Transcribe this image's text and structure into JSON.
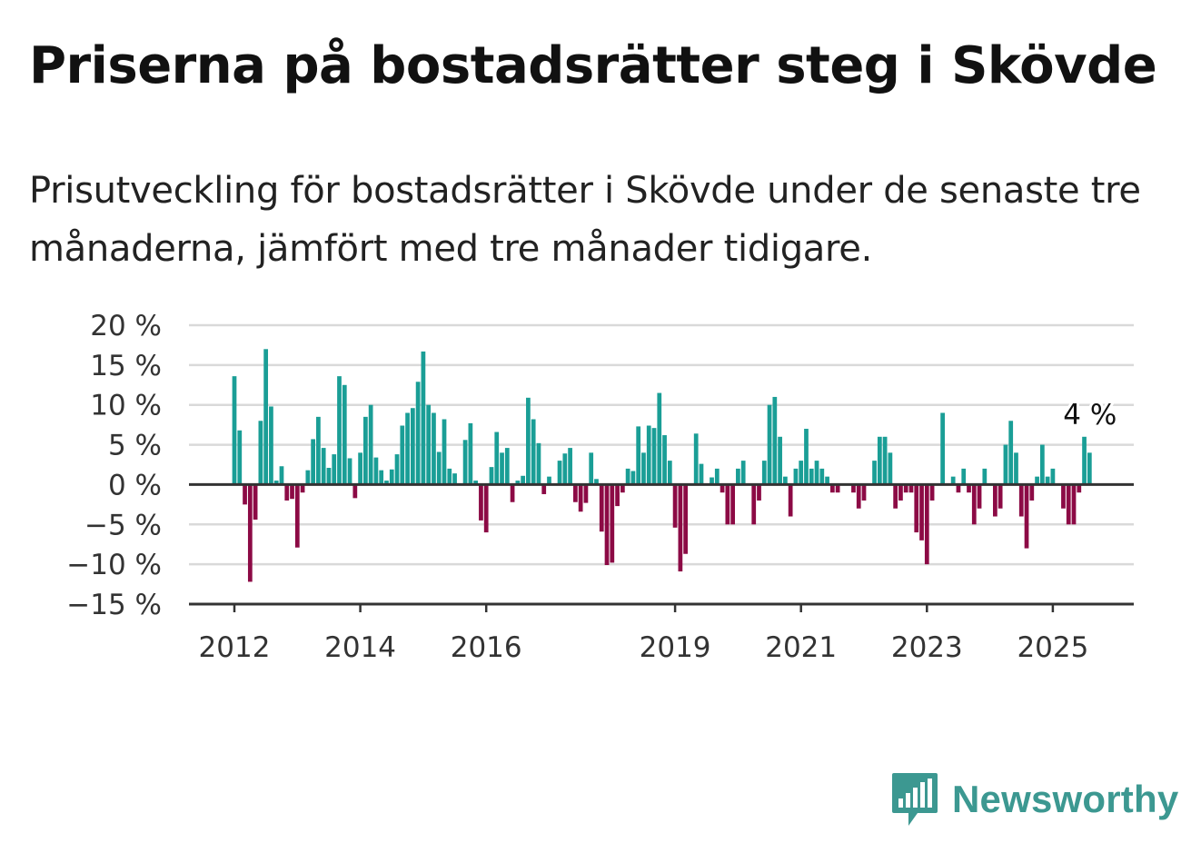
{
  "title": "Priserna på bostadsrätter steg i Skövde",
  "subtitle": "Prisutveckling för bostadsrätter i Skövde under de senaste tre månaderna, jämfört med tre månader tidigare.",
  "brand": {
    "name": "Newsworthy",
    "icon": "newsworthy-logo-icon"
  },
  "colors": {
    "positive": "#1a9e96",
    "negative": "#8c0a45",
    "grid": "#d9d9d9",
    "axis": "#333333"
  },
  "chart_data": {
    "type": "bar",
    "ylim": [
      -15,
      20
    ],
    "y_ticks": [
      20,
      15,
      10,
      5,
      0,
      -5,
      -10,
      -15
    ],
    "y_tick_labels": [
      "20 %",
      "15 %",
      "10 %",
      "5 %",
      "0 %",
      "−5 %",
      "−10 %",
      "−15 %"
    ],
    "x_ticks": [
      "2012",
      "2014",
      "2016",
      "2019",
      "2021",
      "2023",
      "2025"
    ],
    "last_value_label": "4 %",
    "x": [
      "2012-01",
      "2012-02",
      "2012-03",
      "2012-04",
      "2012-05",
      "2012-06",
      "2012-07",
      "2012-08",
      "2012-09",
      "2012-10",
      "2012-11",
      "2012-12",
      "2013-01",
      "2013-02",
      "2013-03",
      "2013-04",
      "2013-05",
      "2013-06",
      "2013-07",
      "2013-08",
      "2013-09",
      "2013-10",
      "2013-11",
      "2013-12",
      "2014-01",
      "2014-02",
      "2014-03",
      "2014-04",
      "2014-05",
      "2014-06",
      "2014-07",
      "2014-08",
      "2014-09",
      "2014-10",
      "2014-11",
      "2014-12",
      "2015-01",
      "2015-02",
      "2015-03",
      "2015-04",
      "2015-05",
      "2015-06",
      "2015-07",
      "2015-08",
      "2015-09",
      "2015-10",
      "2015-11",
      "2015-12",
      "2016-01",
      "2016-02",
      "2016-03",
      "2016-04",
      "2016-05",
      "2016-06",
      "2016-07",
      "2016-08",
      "2016-09",
      "2016-10",
      "2016-11",
      "2016-12",
      "2017-01",
      "2017-02",
      "2017-03",
      "2017-04",
      "2017-05",
      "2017-06",
      "2017-07",
      "2017-08",
      "2017-09",
      "2017-10",
      "2017-11",
      "2017-12",
      "2018-01",
      "2018-02",
      "2018-03",
      "2018-04",
      "2018-05",
      "2018-06",
      "2018-07",
      "2018-08",
      "2018-09",
      "2018-10",
      "2018-11",
      "2018-12",
      "2019-01",
      "2019-02",
      "2019-03",
      "2019-04",
      "2019-05",
      "2019-06",
      "2019-07",
      "2019-08",
      "2019-09",
      "2019-10",
      "2019-11",
      "2019-12",
      "2020-01",
      "2020-02",
      "2020-03",
      "2020-04",
      "2020-05",
      "2020-06",
      "2020-07",
      "2020-08",
      "2020-09",
      "2020-10",
      "2020-11",
      "2020-12",
      "2021-01",
      "2021-02",
      "2021-03",
      "2021-04",
      "2021-05",
      "2021-06",
      "2021-07",
      "2021-08",
      "2021-09",
      "2021-10",
      "2021-11",
      "2021-12",
      "2022-01",
      "2022-02",
      "2022-03",
      "2022-04",
      "2022-05",
      "2022-06",
      "2022-07",
      "2022-08",
      "2022-09",
      "2022-10",
      "2022-11",
      "2022-12",
      "2023-01",
      "2023-02",
      "2023-03",
      "2023-04",
      "2023-05",
      "2023-06",
      "2023-07",
      "2023-08",
      "2023-09",
      "2023-10",
      "2023-11",
      "2023-12",
      "2024-01",
      "2024-02",
      "2024-03",
      "2024-04",
      "2024-05",
      "2024-06",
      "2024-07",
      "2024-08",
      "2024-09",
      "2024-10",
      "2024-11",
      "2024-12",
      "2025-01",
      "2025-02",
      "2025-03",
      "2025-04",
      "2025-05",
      "2025-06",
      "2025-07",
      "2025-08"
    ],
    "values": [
      13.6,
      6.8,
      -2.5,
      -12.2,
      -4.4,
      8.0,
      17.0,
      9.8,
      0.5,
      2.3,
      -2.0,
      -1.8,
      -7.9,
      -1.0,
      1.8,
      5.7,
      8.5,
      4.6,
      2.1,
      3.8,
      13.6,
      12.5,
      3.3,
      -1.7,
      4.0,
      8.5,
      10.0,
      3.4,
      1.8,
      0.5,
      1.9,
      3.8,
      7.4,
      9.0,
      9.6,
      12.9,
      16.7,
      10.0,
      9.0,
      4.1,
      8.2,
      2.0,
      1.4,
      0.0,
      5.6,
      7.7,
      0.5,
      -4.5,
      -6.0,
      2.2,
      6.6,
      4.0,
      4.6,
      -2.2,
      0.5,
      1.1,
      10.9,
      8.2,
      5.2,
      -1.2,
      1.0,
      0.0,
      3.0,
      3.9,
      4.6,
      -2.2,
      -3.4,
      -2.3,
      4.0,
      0.7,
      -5.9,
      -10.1,
      -9.8,
      -2.7,
      -1.0,
      2.0,
      1.7,
      7.3,
      4.0,
      7.4,
      7.1,
      11.5,
      6.2,
      3.0,
      -5.4,
      -10.9,
      -8.7,
      0.0,
      6.4,
      2.6,
      0.0,
      0.9,
      2.0,
      -1.0,
      -5.0,
      -5.0,
      2.0,
      3.0,
      0.0,
      -5.0,
      -2.0,
      3.0,
      10.0,
      11.0,
      6.0,
      1.0,
      -4.0,
      2.0,
      3.0,
      7.0,
      2.0,
      3.0,
      2.0,
      1.0,
      -1.0,
      -1.0,
      0.0,
      0.0,
      -1.0,
      -3.0,
      -2.0,
      0.0,
      3.0,
      6.0,
      6.0,
      4.0,
      -3.0,
      -2.0,
      -1.0,
      -1.0,
      -6.0,
      -7.0,
      -10.0,
      -2.0,
      0.0,
      9.0,
      0.0,
      1.0,
      -1.0,
      2.0,
      -1.0,
      -5.0,
      -3.0,
      2.0,
      0.0,
      -4.0,
      -3.0,
      5.0,
      8.0,
      4.0,
      -4.0,
      -8.0,
      -2.0,
      1.0,
      5.0,
      1.0,
      2.0,
      0.0,
      -3.0,
      -5.0,
      -5.0,
      -1.0,
      6.0,
      4.0
    ]
  }
}
